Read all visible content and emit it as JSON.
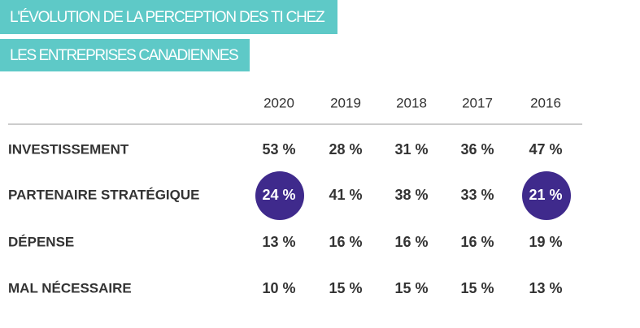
{
  "header": {
    "title_lines": [
      "L'ÉVOLUTION DE LA PERCEPTION DES TI CHEZ",
      "LES ENTREPRISES CANADIENNES"
    ],
    "color": "#5ec9c7"
  },
  "table": {
    "columns": [
      "2020",
      "2019",
      "2018",
      "2017",
      "2016"
    ],
    "rows": [
      {
        "label": "INVESTISSEMENT",
        "values": [
          "53 %",
          "28 %",
          "31 %",
          "36 %",
          "47 %"
        ]
      },
      {
        "label": "PARTENAIRE STRATÉGIQUE",
        "values": [
          "24 %",
          "41 %",
          "38 %",
          "33 %",
          "21 %"
        ]
      },
      {
        "label": "DÉPENSE",
        "values": [
          "13 %",
          "16 %",
          "16 %",
          "16 %",
          "19 %"
        ]
      },
      {
        "label": "MAL NÉCESSAIRE",
        "values": [
          "10 %",
          "15 %",
          "15 %",
          "15 %",
          "13 %"
        ]
      }
    ],
    "highlighted_cells": [
      [
        1,
        0
      ],
      [
        1,
        4
      ]
    ],
    "highlight_color": "#3f2a8c"
  }
}
